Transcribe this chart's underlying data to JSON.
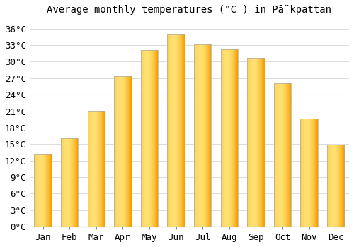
{
  "title": "Average monthly temperatures (°C ) in Pā̈kpattan",
  "months": [
    "Jan",
    "Feb",
    "Mar",
    "Apr",
    "May",
    "Jun",
    "Jul",
    "Aug",
    "Sep",
    "Oct",
    "Nov",
    "Dec"
  ],
  "temperatures": [
    13.2,
    16.1,
    21.1,
    27.3,
    32.1,
    35.1,
    33.1,
    32.2,
    30.7,
    26.1,
    19.7,
    14.9
  ],
  "bar_color_left": "#F5A623",
  "bar_color_right": "#FFD966",
  "bar_color_mid": "#FFCC44",
  "bar_outline": "#999999",
  "yticks": [
    0,
    3,
    6,
    9,
    12,
    15,
    18,
    21,
    24,
    27,
    30,
    33,
    36
  ],
  "ylim": [
    0,
    37.5
  ],
  "background_color": "#ffffff",
  "grid_color": "#dddddd",
  "title_fontsize": 10,
  "tick_fontsize": 9,
  "bar_width": 0.65
}
